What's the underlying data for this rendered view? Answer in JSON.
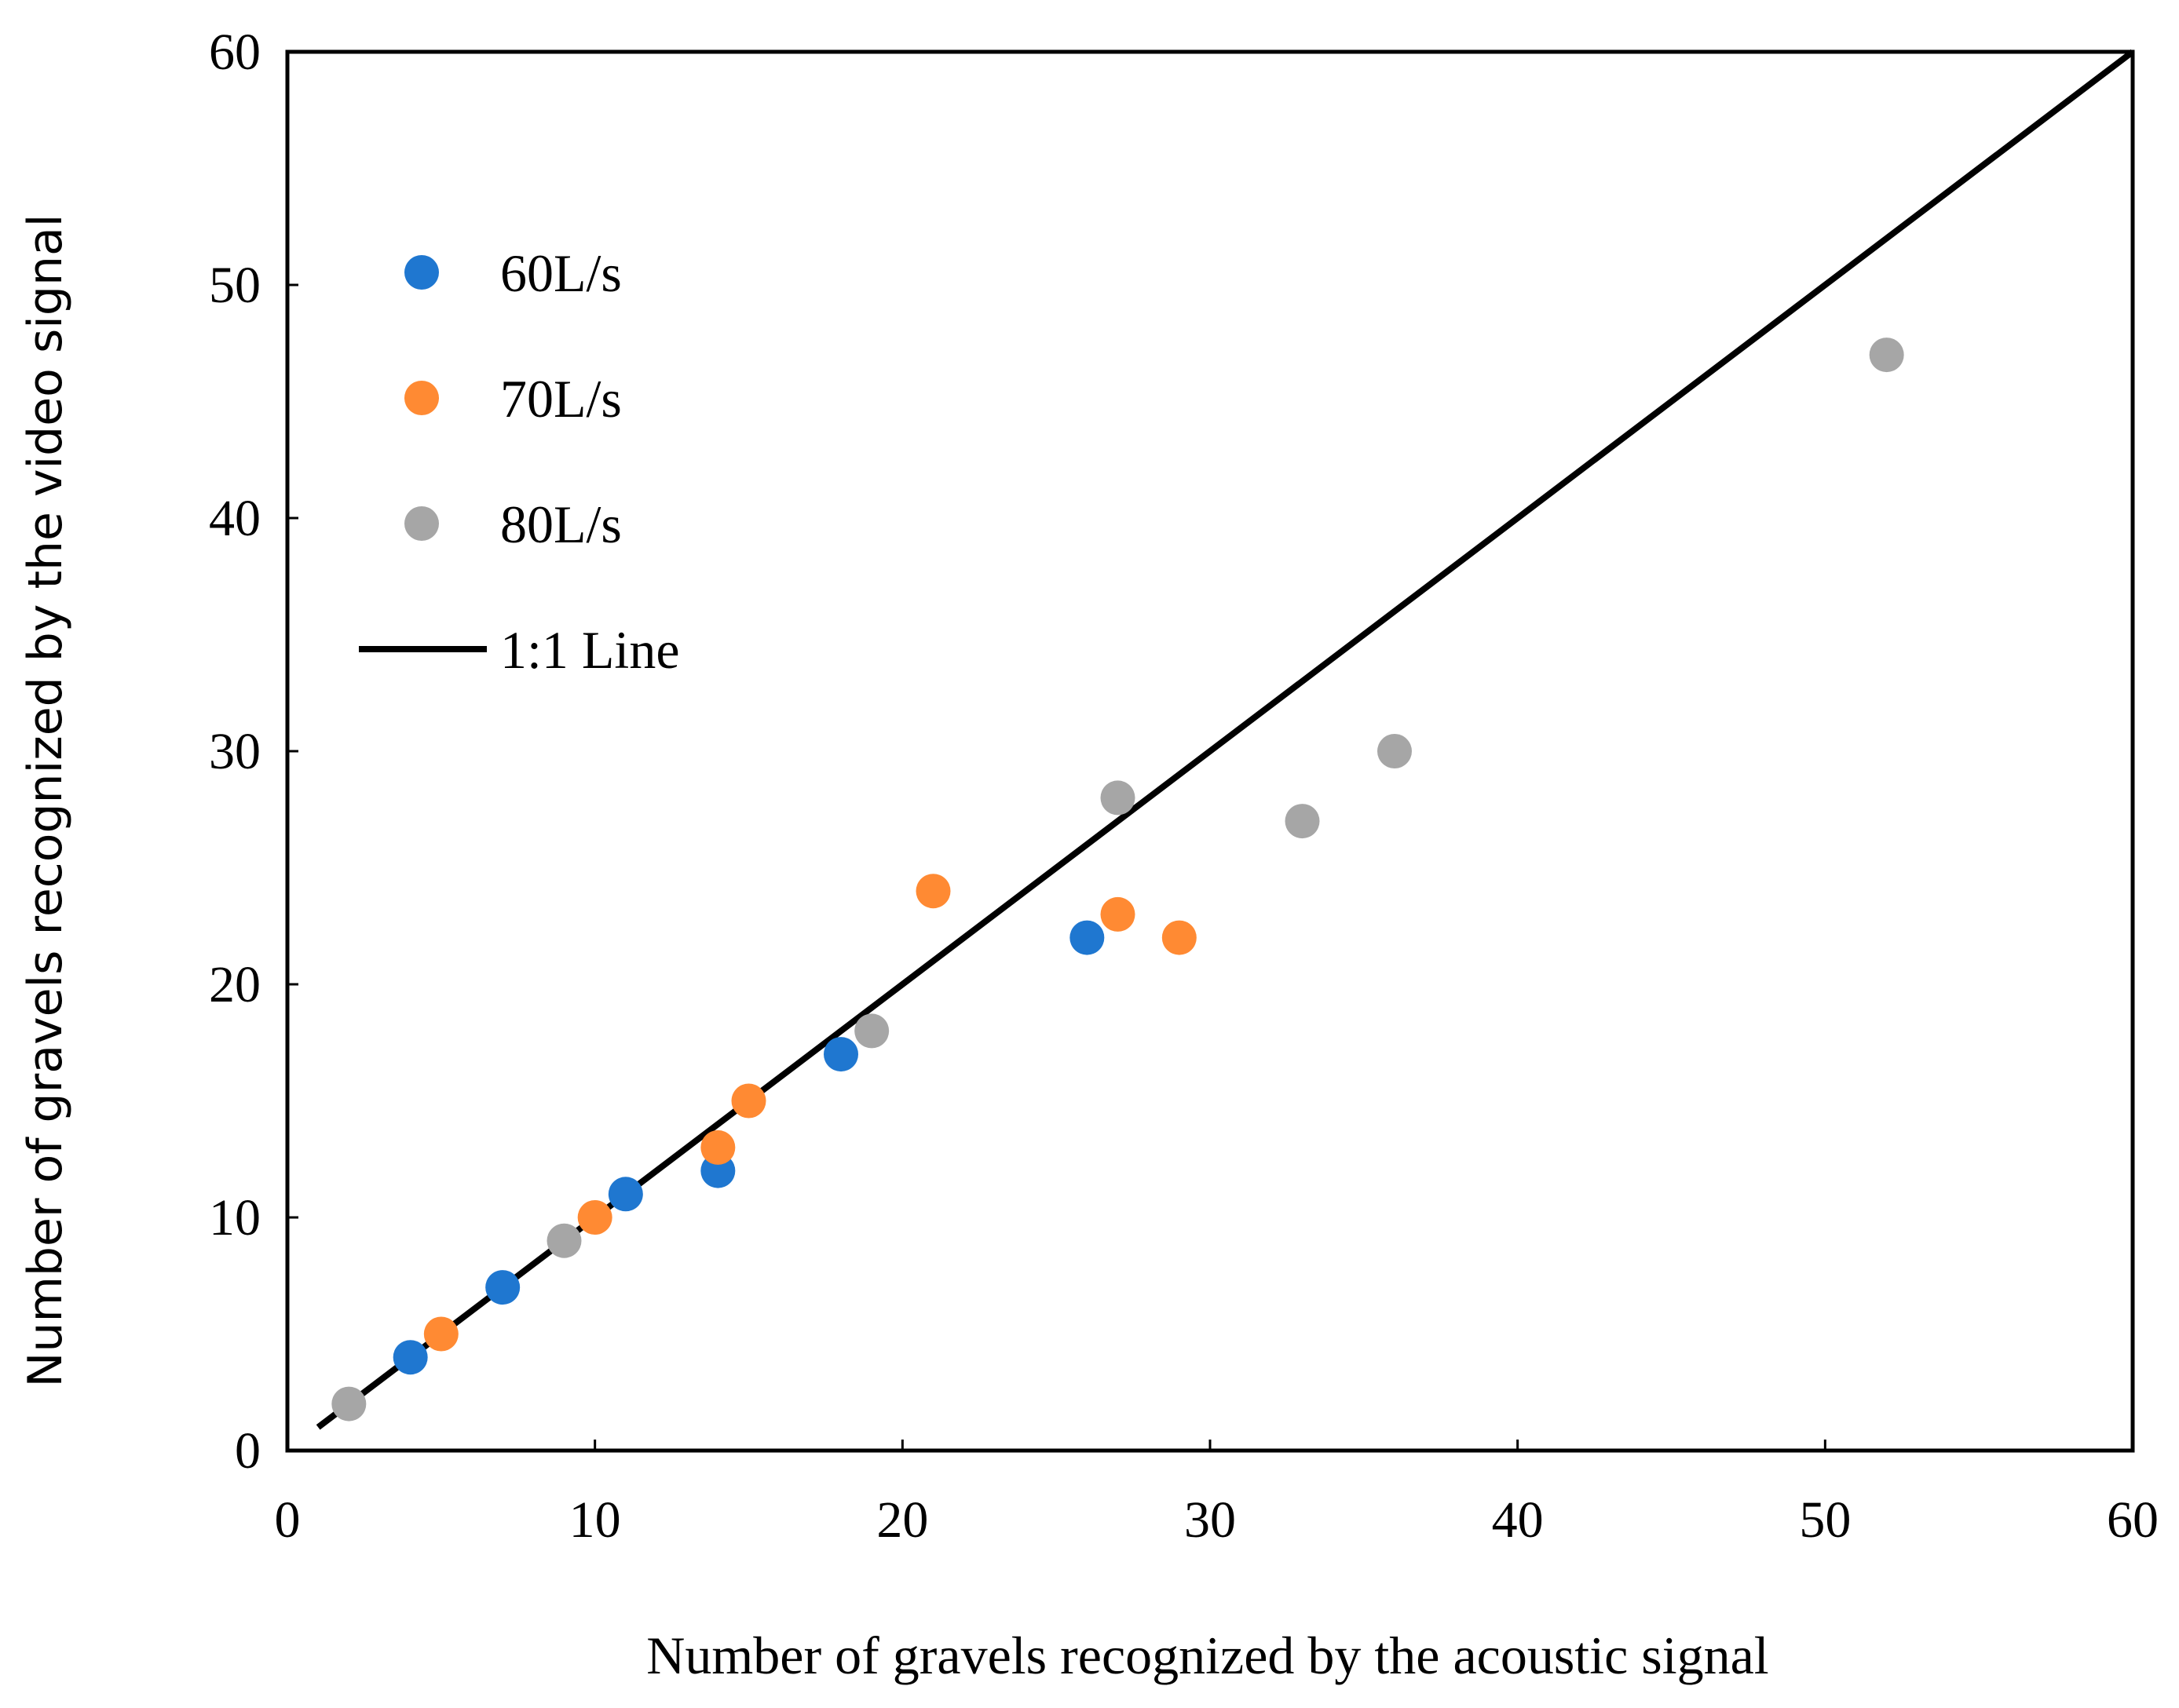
{
  "chart_data": {
    "type": "scatter",
    "title": "",
    "xlabel": "Number of gravels recognized by the acoustic signal",
    "ylabel": "Number of gravels recognized by the video signal",
    "xlim": [
      0,
      60
    ],
    "ylim": [
      0,
      60
    ],
    "xticks": [
      0,
      10,
      20,
      30,
      40,
      50,
      60
    ],
    "yticks": [
      0,
      10,
      20,
      30,
      40,
      50,
      60
    ],
    "grid": false,
    "legend_position": "top-left",
    "series": [
      {
        "name": "60L/s",
        "color": "#1f77d0",
        "points": [
          [
            4,
            4
          ],
          [
            7,
            7
          ],
          [
            11,
            11
          ],
          [
            14,
            12
          ],
          [
            18,
            17
          ],
          [
            26,
            22
          ]
        ]
      },
      {
        "name": "70L/s",
        "color": "#ff8a33",
        "points": [
          [
            5,
            5
          ],
          [
            10,
            10
          ],
          [
            14,
            13
          ],
          [
            15,
            15
          ],
          [
            21,
            24
          ],
          [
            27,
            23
          ],
          [
            29,
            22
          ]
        ]
      },
      {
        "name": "80L/s",
        "color": "#a6a6a6",
        "points": [
          [
            2,
            2
          ],
          [
            9,
            9
          ],
          [
            19,
            18
          ],
          [
            27,
            28
          ],
          [
            33,
            27
          ],
          [
            36,
            30
          ],
          [
            52,
            47
          ]
        ]
      }
    ],
    "reference_line": {
      "name": "1:1 Line",
      "color": "#000000",
      "from": [
        1,
        1
      ],
      "to": [
        60,
        60
      ]
    }
  }
}
